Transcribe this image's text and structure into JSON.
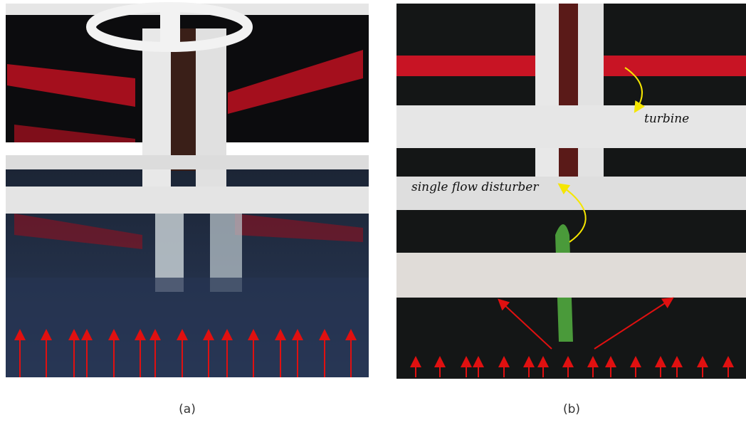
{
  "panels": [
    {
      "label": "(a)"
    },
    {
      "label": "(b)",
      "annotations": [
        "turbine",
        "single flow disturber"
      ]
    }
  ]
}
